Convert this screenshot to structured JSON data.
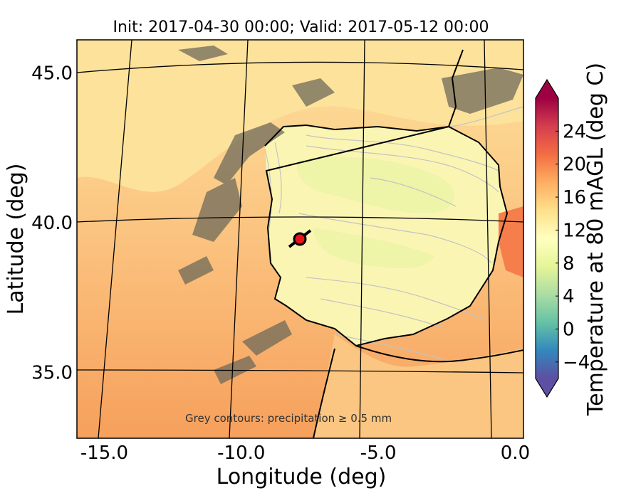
{
  "title": "Init: 2017-04-30 00:00; Valid: 2017-05-12 00:00",
  "x_axis": {
    "label": "Longitude (deg)",
    "ticks": [
      "-15.0",
      "-10.0",
      "-5.0",
      "0.0"
    ],
    "range": [
      -16.0,
      0.3
    ]
  },
  "y_axis": {
    "label": "Latitude (deg)",
    "ticks": [
      "45.0",
      "40.0",
      "35.0"
    ],
    "range": [
      32.8,
      46.1
    ]
  },
  "colorbar": {
    "label": "Temperature at 80 mAGL (deg C)",
    "ticks": [
      "24",
      "20",
      "16",
      "12",
      "8",
      "4",
      "0",
      "−4"
    ],
    "range": [
      -6,
      28
    ],
    "colors": [
      "#5e4fa2",
      "#3288bd",
      "#66c2a5",
      "#abdda4",
      "#e6f598",
      "#ffffbf",
      "#fee08b",
      "#fdae61",
      "#f46d43",
      "#d53e4f",
      "#9e0142"
    ],
    "extend": "both"
  },
  "annotation": "Grey contours: precipitation ≥ 0.5 mm",
  "marker": {
    "lon": -7.7,
    "lat": 39.3,
    "color": "#e8141a"
  },
  "map_colors": {
    "ocean_warm": "#f6a05c",
    "ocean_mid": "#fbc682",
    "ocean_cool": "#fde29c",
    "land_cool": "#fbf5b4",
    "inland": "#eef4a8",
    "mediterranean": "#f57e4c",
    "precip_grey": "#c3c3c3"
  }
}
